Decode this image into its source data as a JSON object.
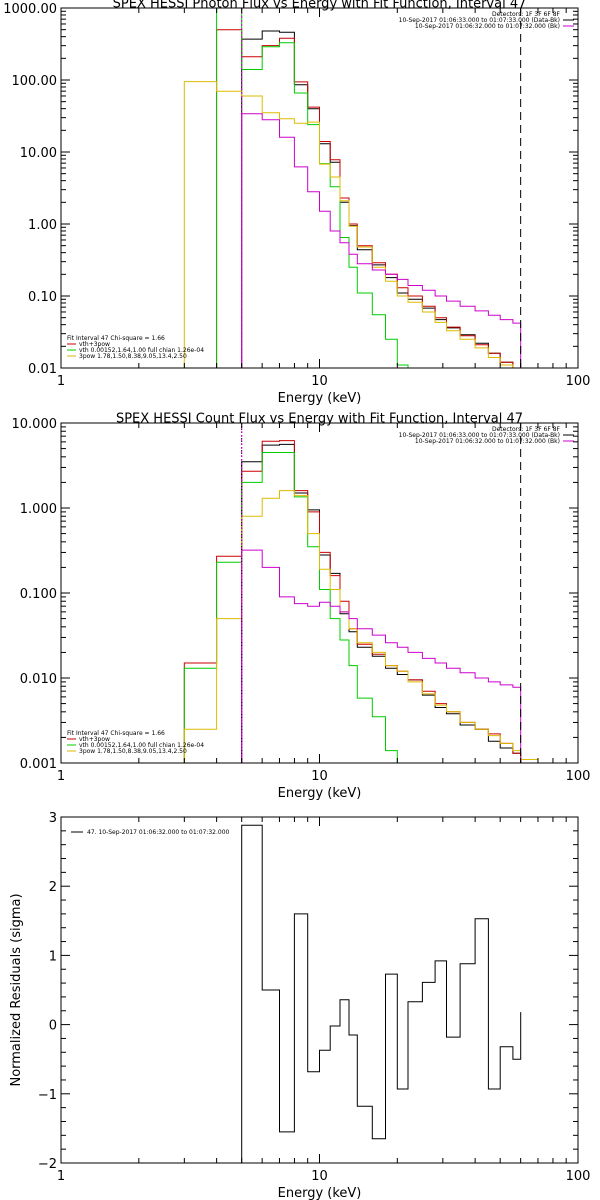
{
  "chart_data": [
    {
      "type": "line",
      "title": "SPEX HESSI Photon Flux vs Energy with Fit Function, Interval 47",
      "xlabel": "Energy (keV)",
      "ylabel": "",
      "xscale": "log",
      "yscale": "log",
      "xlim": [
        1,
        100
      ],
      "ylim": [
        0.01,
        1000
      ],
      "xticks": [
        {
          "v": 1,
          "label": "1"
        },
        {
          "v": 10,
          "label": "10"
        },
        {
          "v": 100,
          "label": "100"
        }
      ],
      "yticks": [
        {
          "v": 0.01,
          "label": "0.01"
        },
        {
          "v": 0.1,
          "label": "0.10"
        },
        {
          "v": 1,
          "label": "1.00"
        },
        {
          "v": 10,
          "label": "10.00"
        },
        {
          "v": 100,
          "label": "100.00"
        },
        {
          "v": 1000,
          "label": "1000.00"
        }
      ],
      "info_lines": [
        "Detectors: 1F 3F 6F 8F",
        "10-Sep-2017 01:06:33.000 to 01:07:33.000 (Data-Bk)",
        "10-Sep-2017 01:06:32.000 to 01:07:32.000 (Bk)"
      ],
      "info_colors": [
        "#000000",
        "#000000",
        "#cc00cc"
      ],
      "fit_lines": [
        "Fit Interval 47   Chi-square = 1.66",
        "vth+3pow",
        "vth 0.00152,1.64,1.00  full chian 1.26e-04",
        "3pow 1.78,1.50,8.38,9.05,13.4,2.50"
      ],
      "fit_colors": [
        "#000000",
        "#cc0000",
        "#00cc00",
        "#ddbb00"
      ],
      "vlines": [
        {
          "x": 5.0,
          "color": "#cc00cc",
          "dash": "2,2"
        },
        {
          "x": 60.0,
          "color": "#000000",
          "dash": "8,5"
        }
      ],
      "edges": [
        3.0,
        4.0,
        5.0,
        6.0,
        7.0,
        8.0,
        9.0,
        10.0,
        11.0,
        12.0,
        13.0,
        14.0,
        16.0,
        18.0,
        20.0,
        22.0,
        25.0,
        28.0,
        31.0,
        35.0,
        40.0,
        45.0,
        50.0,
        56.0,
        60.0
      ],
      "series": [
        {
          "name": "Data-Bk",
          "color": "#000000",
          "values": [
            null,
            null,
            370,
            480,
            460,
            86,
            40,
            13,
            7.2,
            2.0,
            0.95,
            0.44,
            0.27,
            0.18,
            0.11,
            0.09,
            0.068,
            0.047,
            0.036,
            0.029,
            0.022,
            0.016,
            0.012,
            0.0095
          ]
        },
        {
          "name": "vth+3pow",
          "color": "#cc0000",
          "values": [
            null,
            500,
            210,
            300,
            380,
            94,
            42,
            14,
            7.8,
            2.3,
            1.0,
            0.5,
            0.29,
            0.2,
            0.13,
            0.1,
            0.072,
            0.05,
            0.037,
            0.028,
            0.021,
            0.016,
            0.012,
            0.009
          ]
        },
        {
          "name": "vth",
          "color": "#00cc00",
          "values": [
            null,
            1000,
            140,
            290,
            330,
            66,
            24,
            6.9,
            3.3,
            0.65,
            0.25,
            0.11,
            0.055,
            0.025,
            0.011,
            null,
            null,
            null,
            null,
            null,
            null,
            null,
            null,
            null
          ]
        },
        {
          "name": "3pow",
          "color": "#ddbb00",
          "values": [
            95,
            70,
            60,
            35,
            29,
            25,
            26,
            6.8,
            4.5,
            2.1,
            0.93,
            0.48,
            0.25,
            0.16,
            0.1,
            0.082,
            0.06,
            0.043,
            0.033,
            0.025,
            0.019,
            0.014,
            0.011,
            0.009
          ]
        },
        {
          "name": "Bk",
          "color": "#cc00cc",
          "values": [
            null,
            null,
            34,
            28,
            16,
            6.2,
            2.8,
            1.5,
            0.8,
            0.55,
            0.38,
            0.28,
            0.23,
            0.2,
            0.17,
            0.14,
            0.12,
            0.1,
            0.085,
            0.072,
            0.062,
            0.054,
            0.047,
            0.042
          ]
        }
      ]
    },
    {
      "type": "line",
      "title": "SPEX HESSI Count Flux vs Energy with Fit Function, Interval 47",
      "xlabel": "Energy (keV)",
      "ylabel": "",
      "xscale": "log",
      "yscale": "log",
      "xlim": [
        1,
        100
      ],
      "ylim": [
        0.001,
        10
      ],
      "xticks": [
        {
          "v": 1,
          "label": "1"
        },
        {
          "v": 10,
          "label": "10"
        },
        {
          "v": 100,
          "label": "100"
        }
      ],
      "yticks": [
        {
          "v": 0.001,
          "label": "0.001"
        },
        {
          "v": 0.01,
          "label": "0.010"
        },
        {
          "v": 0.1,
          "label": "0.100"
        },
        {
          "v": 1,
          "label": "1.000"
        },
        {
          "v": 10,
          "label": "10.000"
        }
      ],
      "info_lines": [
        "Detectors: 1F 3F 6F 8F",
        "10-Sep-2017 01:06:33.000 to 01:07:33.000 (Data-Bk)",
        "10-Sep-2017 01:06:32.000 to 01:07:32.000 (Bk)"
      ],
      "info_colors": [
        "#000000",
        "#000000",
        "#cc00cc"
      ],
      "fit_lines": [
        "Fit Interval 47   Chi-square = 1.66",
        "vth+3pow",
        "vth 0.00152,1.64,1.00  full chian 1.26e-04",
        "3pow 1.78,1.50,8.38,9.05,13.4,2.50"
      ],
      "fit_colors": [
        "#000000",
        "#cc0000",
        "#00cc00",
        "#ddbb00"
      ],
      "vlines": [
        {
          "x": 5.0,
          "color": "#000000",
          "dash": "1,2"
        },
        {
          "x": 5.0,
          "color": "#cc00cc",
          "dash": "2,2"
        },
        {
          "x": 60.0,
          "color": "#000000",
          "dash": "8,5"
        }
      ],
      "edges": [
        3.0,
        4.0,
        5.0,
        6.0,
        7.0,
        8.0,
        9.0,
        10.0,
        11.0,
        12.0,
        13.0,
        14.0,
        16.0,
        18.0,
        20.0,
        22.0,
        25.0,
        28.0,
        31.0,
        35.0,
        40.0,
        45.0,
        50.0,
        56.0,
        60.0,
        70.0,
        80.0
      ],
      "series": [
        {
          "name": "Data-Bk",
          "color": "#000000",
          "values": [
            null,
            null,
            3.5,
            5.5,
            5.6,
            1.5,
            0.95,
            0.28,
            0.17,
            0.057,
            0.035,
            0.023,
            0.018,
            0.013,
            0.011,
            0.0095,
            0.0063,
            0.0045,
            0.0038,
            0.0028,
            0.0025,
            0.0018,
            0.0015,
            0.0013,
            null,
            null
          ]
        },
        {
          "name": "vth+3pow",
          "color": "#cc0000",
          "values": [
            0.015,
            0.27,
            2.7,
            6.1,
            6.2,
            1.6,
            0.9,
            0.3,
            0.16,
            0.08,
            0.038,
            0.025,
            0.019,
            0.014,
            0.012,
            0.0095,
            0.007,
            0.005,
            0.004,
            0.003,
            0.0025,
            0.0022,
            0.0017,
            0.0013,
            null,
            null
          ]
        },
        {
          "name": "vth",
          "color": "#00cc00",
          "values": [
            0.013,
            0.23,
            2.0,
            4.5,
            4.5,
            1.35,
            0.35,
            0.11,
            0.05,
            0.028,
            0.014,
            0.0058,
            0.0035,
            0.0014,
            null,
            null,
            null,
            null,
            null,
            null,
            null,
            null,
            null,
            null,
            null,
            null
          ]
        },
        {
          "name": "3pow",
          "color": "#ddbb00",
          "values": [
            0.0025,
            0.05,
            0.8,
            1.3,
            1.6,
            1.4,
            0.5,
            0.19,
            0.11,
            0.06,
            0.038,
            0.026,
            0.02,
            0.014,
            0.012,
            0.009,
            0.0065,
            0.0048,
            0.004,
            0.003,
            0.0025,
            0.0021,
            0.0017,
            0.0014,
            0.0011,
            null
          ]
        },
        {
          "name": "Bk",
          "color": "#cc00cc",
          "values": [
            null,
            null,
            0.32,
            0.2,
            0.09,
            0.075,
            0.07,
            0.078,
            0.07,
            0.06,
            0.05,
            0.038,
            0.032,
            0.026,
            0.023,
            0.02,
            0.017,
            0.015,
            0.013,
            0.0115,
            0.01,
            0.009,
            0.0083,
            0.0078,
            null,
            null
          ]
        }
      ]
    },
    {
      "type": "line",
      "title": "",
      "xlabel": "Energy (keV)",
      "ylabel": "Normalized Residuals (sigma)",
      "xscale": "log",
      "yscale": "linear",
      "xlim": [
        1,
        100
      ],
      "ylim": [
        -2,
        3
      ],
      "xticks": [
        {
          "v": 1,
          "label": "1"
        },
        {
          "v": 10,
          "label": "10"
        },
        {
          "v": 100,
          "label": "100"
        }
      ],
      "yticks": [
        {
          "v": -2,
          "label": "−2"
        },
        {
          "v": -1,
          "label": "−1"
        },
        {
          "v": 0,
          "label": "0"
        },
        {
          "v": 1,
          "label": "1"
        },
        {
          "v": 2,
          "label": "2"
        },
        {
          "v": 3,
          "label": "3"
        }
      ],
      "legend": "47. 10-Sep-2017 01:06:32.000 to 01:07:32.000",
      "edges": [
        5.0,
        6.0,
        7.0,
        8.0,
        9.0,
        10.0,
        11.0,
        12.0,
        13.0,
        14.0,
        16.0,
        18.0,
        20.0,
        22.0,
        25.0,
        28.0,
        31.0,
        35.0,
        40.0,
        45.0,
        50.0,
        56.0,
        60.0
      ],
      "series": [
        {
          "name": "47. 10-Sep-2017 01:06:32.000 to 01:07:32.000",
          "color": "#000000",
          "values": [
            2.88,
            0.5,
            -1.55,
            1.6,
            -0.68,
            -0.37,
            -0.02,
            0.36,
            -0.15,
            -1.18,
            -1.65,
            0.73,
            -0.93,
            0.33,
            0.61,
            0.92,
            -0.18,
            0.88,
            1.53,
            -0.93,
            -0.32,
            -0.5,
            0.18
          ]
        }
      ]
    }
  ]
}
